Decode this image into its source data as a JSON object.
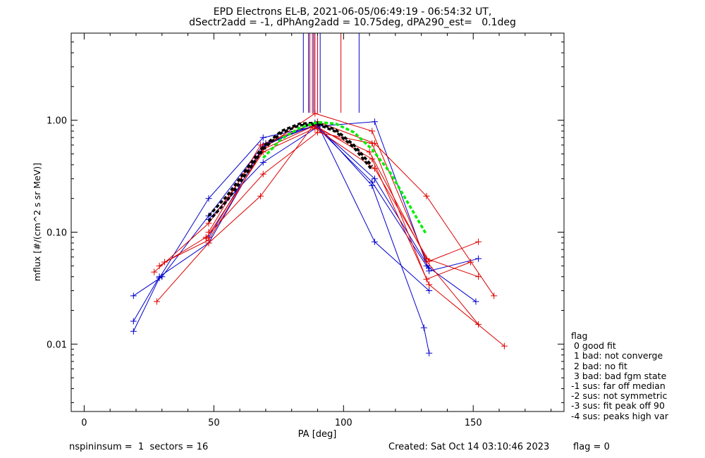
{
  "title_line1": "EPD Electrons EL-B, 2021-06-05/06:49:19 - 06:54:32 UT,",
  "title_line2": "dSectr2add = -1, dPhAng2add = 10.75deg, dPA290_est=   0.1deg",
  "footer": {
    "left": "nspininsum =  1  sectors = 16",
    "created": "Created: Sat Oct 14 03:10:46 2023",
    "flag": "flag = 0"
  },
  "flag_legend": {
    "title": "flag",
    "entries": [
      " 0 good fit",
      " 1 bad: not converge",
      " 2 bad: no fit",
      " 3 bad: bad fgm state",
      "-1 sus: far off median",
      "-2 sus: not symmetric",
      "-3 sus: fit peak off 90",
      "-4 sus: peaks high var"
    ]
  },
  "chart_data": {
    "type": "line",
    "title": "EPD Electrons EL-B, 2021-06-05/06:49:19 - 06:54:32 UT,",
    "xlabel": "PA [deg]",
    "ylabel": "mflux [#/(cm^2 s sr MeV)]",
    "xlim": [
      -5,
      185
    ],
    "ylim": [
      0.0025,
      6
    ],
    "yscale": "log",
    "xticks": [
      0,
      50,
      100,
      150
    ],
    "xtick_labels": [
      "0",
      "50",
      "100",
      "150"
    ],
    "yticks": [
      0.01,
      0.1,
      1.0
    ],
    "ytick_labels": [
      "0.01",
      "0.10",
      "1.00"
    ],
    "colors": {
      "blue": "#0000cc",
      "red": "#dd0000",
      "black": "#000000",
      "green": "#00ee00"
    },
    "series": [
      {
        "color": "blue",
        "x": [
          19,
          29,
          48,
          69,
          89,
          112,
          133,
          152
        ],
        "y": [
          0.013,
          0.039,
          0.2,
          0.7,
          0.88,
          0.97,
          0.045,
          0.058
        ]
      },
      {
        "color": "blue",
        "x": [
          19,
          30,
          48,
          69,
          89,
          111,
          132,
          151
        ],
        "y": [
          0.027,
          0.04,
          0.14,
          0.6,
          0.9,
          0.28,
          0.05,
          0.024
        ]
      },
      {
        "color": "blue",
        "x": [
          19,
          29,
          48,
          70,
          90,
          112,
          133
        ],
        "y": [
          0.016,
          0.04,
          0.08,
          0.62,
          0.92,
          0.082,
          0.03
        ]
      },
      {
        "color": "blue",
        "x": [
          48,
          69,
          89,
          111,
          131,
          133
        ],
        "y": [
          0.09,
          0.58,
          0.95,
          0.26,
          0.014,
          0.0083
        ]
      },
      {
        "color": "blue",
        "x": [
          48,
          69,
          90,
          112,
          133
        ],
        "y": [
          0.13,
          0.42,
          0.87,
          0.3,
          0.048
        ]
      },
      {
        "color": "red",
        "x": [
          27,
          48,
          69,
          89,
          111,
          132,
          152
        ],
        "y": [
          0.044,
          0.12,
          0.56,
          1.15,
          0.8,
          0.055,
          0.015
        ]
      },
      {
        "color": "red",
        "x": [
          28,
          48,
          68,
          88,
          110,
          132,
          152
        ],
        "y": [
          0.024,
          0.08,
          0.21,
          0.88,
          0.52,
          0.058,
          0.04
        ]
      },
      {
        "color": "red",
        "x": [
          29,
          47,
          69,
          90,
          111,
          132,
          149
        ],
        "y": [
          0.05,
          0.09,
          0.33,
          0.78,
          0.62,
          0.038,
          0.054
        ]
      },
      {
        "color": "red",
        "x": [
          31,
          48,
          69,
          89,
          111,
          133,
          162
        ],
        "y": [
          0.054,
          0.085,
          0.55,
          0.9,
          0.45,
          0.034,
          0.0096
        ]
      },
      {
        "color": "red",
        "x": [
          48,
          68,
          90,
          112,
          132,
          158
        ],
        "y": [
          0.1,
          0.6,
          0.97,
          0.62,
          0.21,
          0.027
        ]
      },
      {
        "color": "red",
        "x": [
          47,
          69,
          89,
          112,
          133,
          152
        ],
        "y": [
          0.088,
          0.52,
          0.85,
          0.37,
          0.055,
          0.082
        ]
      }
    ],
    "fits": [
      {
        "color": "black",
        "style": "dashed",
        "x": [
          48,
          55,
          62,
          69,
          76,
          83,
          90,
          97,
          104,
          111
        ],
        "y": [
          0.14,
          0.21,
          0.35,
          0.58,
          0.8,
          0.93,
          0.95,
          0.82,
          0.6,
          0.39
        ]
      },
      {
        "color": "black",
        "style": "dashed",
        "x": [
          48,
          55,
          62,
          69,
          76,
          83,
          90,
          97,
          104,
          111
        ],
        "y": [
          0.125,
          0.19,
          0.32,
          0.55,
          0.77,
          0.9,
          0.92,
          0.79,
          0.57,
          0.36
        ]
      },
      {
        "color": "green",
        "style": "dashed",
        "x": [
          69,
          76,
          83,
          90,
          97,
          104,
          111,
          118,
          125,
          132
        ],
        "y": [
          0.46,
          0.68,
          0.85,
          0.96,
          0.93,
          0.78,
          0.55,
          0.34,
          0.18,
          0.095
        ]
      }
    ],
    "vertical_markers": {
      "blue": [
        84.5,
        86.5,
        88.5,
        91,
        106
      ],
      "red": [
        87,
        88,
        89,
        90,
        99
      ]
    }
  }
}
